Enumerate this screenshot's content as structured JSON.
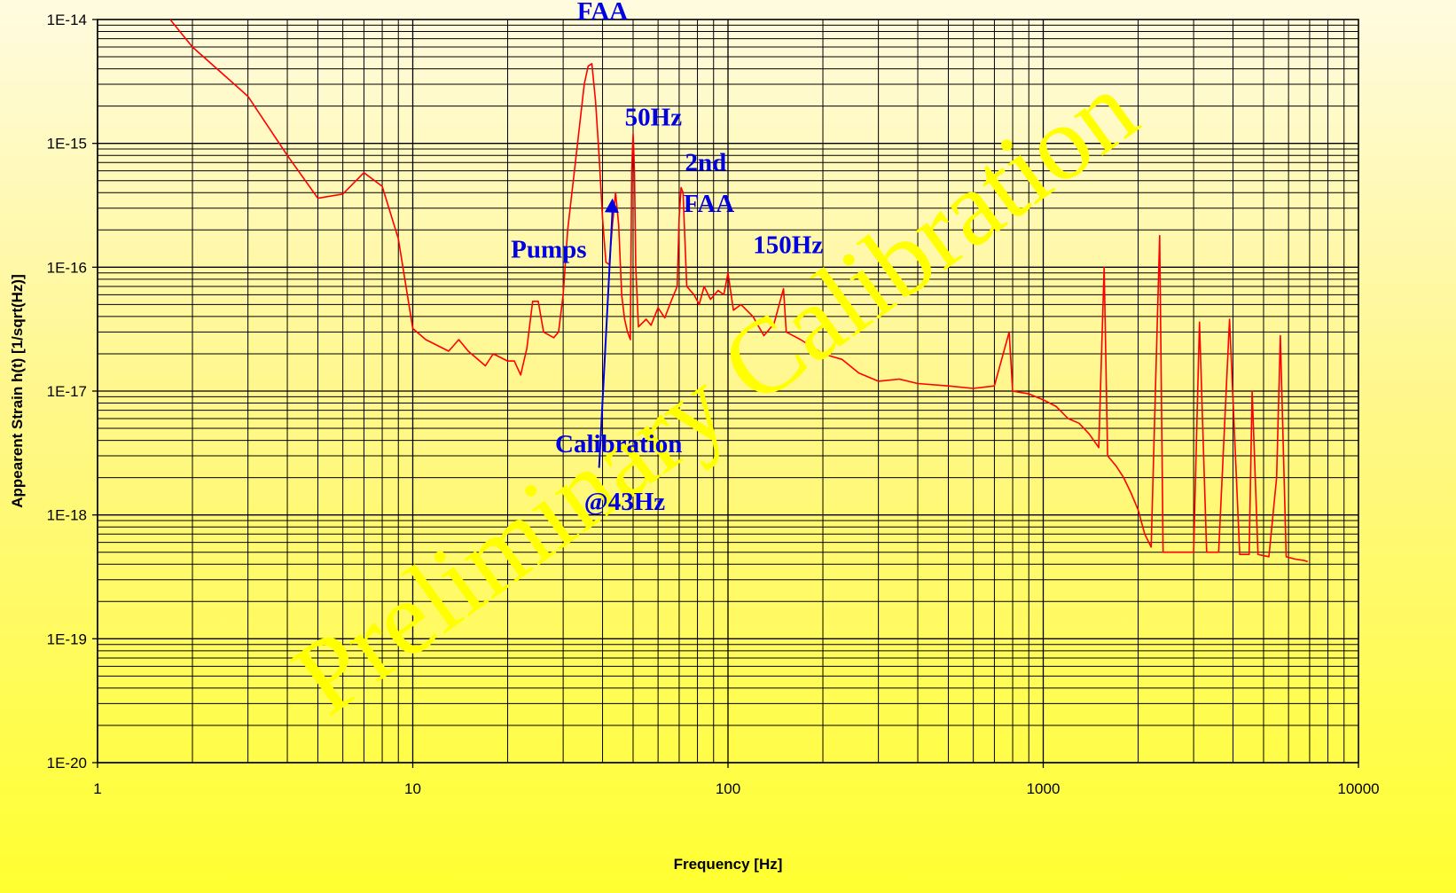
{
  "colors": {
    "series": "#ff0000",
    "annotation": "#0000e0",
    "watermark": "#ffff00",
    "grid": "#000000"
  },
  "watermark": {
    "text": "Preliminary  Calibration"
  },
  "chart_data": {
    "type": "line",
    "xlabel": "Frequency [Hz]",
    "ylabel": "Appearent Strain h(t) [1/sqrt(Hz)]",
    "xscale": "log",
    "yscale": "log",
    "xlim": [
      1,
      10000
    ],
    "ylim": [
      1e-20,
      1e-14
    ],
    "grid": true,
    "x_ticks": [
      {
        "value": 1,
        "label": "1"
      },
      {
        "value": 10,
        "label": "10"
      },
      {
        "value": 100,
        "label": "100"
      },
      {
        "value": 1000,
        "label": "1000"
      },
      {
        "value": 10000,
        "label": "10000"
      }
    ],
    "y_ticks": [
      {
        "value": 1e-14,
        "label": "1E-14"
      },
      {
        "value": 1e-15,
        "label": "1E-15"
      },
      {
        "value": 1e-16,
        "label": "1E-16"
      },
      {
        "value": 1e-17,
        "label": "1E-17"
      },
      {
        "value": 1e-18,
        "label": "1E-18"
      },
      {
        "value": 1e-19,
        "label": "1E-19"
      },
      {
        "value": 1e-20,
        "label": "1E-20"
      }
    ],
    "series": [
      {
        "points": [
          [
            1.7,
            1e-14
          ],
          [
            2,
            6e-15
          ],
          [
            3,
            2.4e-15
          ],
          [
            4,
            8e-16
          ],
          [
            5,
            3.6e-16
          ],
          [
            6,
            3.9e-16
          ],
          [
            7,
            5.8e-16
          ],
          [
            8,
            4.5e-16
          ],
          [
            9,
            1.7e-16
          ],
          [
            10,
            3.2e-17
          ],
          [
            11,
            2.6e-17
          ],
          [
            13,
            2.1e-17
          ],
          [
            14,
            2.6e-17
          ],
          [
            15,
            2.1e-17
          ],
          [
            17,
            1.6e-17
          ],
          [
            18,
            2e-17
          ],
          [
            20,
            1.75e-17
          ],
          [
            21,
            1.75e-17
          ],
          [
            22,
            1.35e-17
          ],
          [
            23,
            2.2e-17
          ],
          [
            24,
            5.3e-17
          ],
          [
            25,
            5.3e-17
          ],
          [
            26,
            3e-17
          ],
          [
            28,
            2.7e-17
          ],
          [
            29,
            3e-17
          ],
          [
            30,
            6e-17
          ],
          [
            31,
            2e-16
          ],
          [
            33,
            8e-16
          ],
          [
            35,
            3e-15
          ],
          [
            36,
            4.2e-15
          ],
          [
            37,
            4.4e-15
          ],
          [
            38,
            2.2e-15
          ],
          [
            39,
            8e-16
          ],
          [
            40,
            2.5e-16
          ],
          [
            41,
            1.1e-16
          ],
          [
            42,
            1.05e-16
          ],
          [
            43,
            2.2e-16
          ],
          [
            44,
            4e-16
          ],
          [
            45,
            2.2e-16
          ],
          [
            46,
            6e-17
          ],
          [
            47,
            3.8e-17
          ],
          [
            48,
            3e-17
          ],
          [
            49,
            2.6e-17
          ],
          [
            49.5,
            6e-16
          ],
          [
            50,
            1.2e-15
          ],
          [
            50.5,
            6e-16
          ],
          [
            51,
            1e-16
          ],
          [
            52,
            3.3e-17
          ],
          [
            55,
            3.8e-17
          ],
          [
            57,
            3.4e-17
          ],
          [
            60,
            4.7e-17
          ],
          [
            63,
            3.9e-17
          ],
          [
            66,
            5.3e-17
          ],
          [
            69,
            7e-17
          ],
          [
            70,
            2.5e-16
          ],
          [
            71,
            4.4e-16
          ],
          [
            72,
            4e-16
          ],
          [
            74,
            7e-17
          ],
          [
            78,
            6e-17
          ],
          [
            81,
            5e-17
          ],
          [
            84,
            7e-17
          ],
          [
            88,
            5.5e-17
          ],
          [
            93,
            6.5e-17
          ],
          [
            97,
            6e-17
          ],
          [
            100,
            9e-17
          ],
          [
            104,
            4.5e-17
          ],
          [
            110,
            5e-17
          ],
          [
            120,
            4e-17
          ],
          [
            130,
            2.8e-17
          ],
          [
            140,
            3.5e-17
          ],
          [
            150,
            6.7e-17
          ],
          [
            153,
            3e-17
          ],
          [
            170,
            2.6e-17
          ],
          [
            200,
            2e-17
          ],
          [
            230,
            1.8e-17
          ],
          [
            260,
            1.4e-17
          ],
          [
            300,
            1.2e-17
          ],
          [
            350,
            1.25e-17
          ],
          [
            400,
            1.15e-17
          ],
          [
            500,
            1.1e-17
          ],
          [
            600,
            1.05e-17
          ],
          [
            700,
            1.1e-17
          ],
          [
            780,
            3e-17
          ],
          [
            800,
            1e-17
          ],
          [
            900,
            9.5e-18
          ],
          [
            1000,
            8.5e-18
          ],
          [
            1100,
            7.5e-18
          ],
          [
            1200,
            6e-18
          ],
          [
            1300,
            5.5e-18
          ],
          [
            1400,
            4.5e-18
          ],
          [
            1500,
            3.5e-18
          ],
          [
            1560,
            1e-16
          ],
          [
            1600,
            3e-18
          ],
          [
            1700,
            2.5e-18
          ],
          [
            1800,
            2e-18
          ],
          [
            1900,
            1.5e-18
          ],
          [
            2000,
            1.1e-18
          ],
          [
            2100,
            7e-19
          ],
          [
            2200,
            5.5e-19
          ],
          [
            2340,
            1.8e-16
          ],
          [
            2400,
            5e-19
          ],
          [
            2700,
            5e-19
          ],
          [
            3000,
            5e-19
          ],
          [
            3130,
            3.6e-17
          ],
          [
            3300,
            5e-19
          ],
          [
            3600,
            5e-19
          ],
          [
            3900,
            3.8e-17
          ],
          [
            4200,
            4.8e-19
          ],
          [
            4500,
            4.8e-19
          ],
          [
            4600,
            1e-17
          ],
          [
            4800,
            4.8e-19
          ],
          [
            5200,
            4.6e-19
          ],
          [
            5500,
            2e-18
          ],
          [
            5650,
            2.8e-17
          ],
          [
            5900,
            4.6e-19
          ],
          [
            6300,
            4.4e-19
          ],
          [
            6700,
            4.3e-19
          ],
          [
            6900,
            4.2e-19
          ]
        ]
      }
    ],
    "annotations": [
      {
        "text": "FAA",
        "x": 40,
        "y": 1e-14
      },
      {
        "text": "50Hz",
        "x": 58,
        "y": 1.4e-15
      },
      {
        "text": "2nd",
        "x": 85,
        "y": 6e-16
      },
      {
        "text": "FAA",
        "x": 87,
        "y": 2.8e-16
      },
      {
        "text": "Pumps",
        "x": 27,
        "y": 1.2e-16
      },
      {
        "text": "150Hz",
        "x": 155,
        "y": 1.3e-16
      },
      {
        "text": "Calibration",
        "x": 45,
        "y": 3.2e-18
      },
      {
        "text": "@43Hz",
        "x": 47,
        "y": 1.1e-18
      }
    ],
    "arrows": [
      {
        "from": [
          39,
          2.4e-18
        ],
        "to": [
          43,
          3.6e-16
        ]
      }
    ]
  }
}
